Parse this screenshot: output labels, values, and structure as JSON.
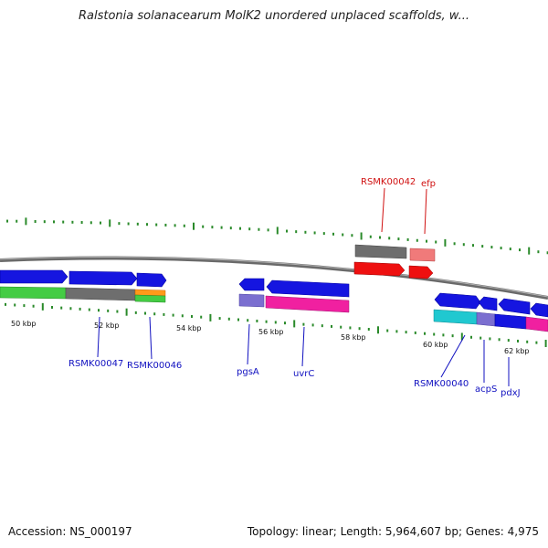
{
  "title": "Ralstonia solanacearum MolK2 unordered unplaced scaffolds, w...",
  "footer": {
    "accession": "Accession: NS_000197",
    "summary": "Topology: linear; Length: 5,964,607 bp; Genes: 4,975"
  },
  "colors": {
    "backbone": "#7a7a7a",
    "tick": "#2a8a2a",
    "gene_label_blue": "#1010c0",
    "gene_label_red": "#d01010",
    "forward_gene": "#1515e0",
    "grey_gene": "#6e6e6e",
    "red_gene": "#ee1010",
    "pink_gene": "#f07a7a",
    "green_track": "#44cc44",
    "orange_track": "#ff9a1a",
    "purple_track": "#7b6fd0",
    "magenta_track": "#f020a0",
    "cyan_track": "#20c8d0"
  },
  "ruler": {
    "labels": [
      "50 kbp",
      "52 kbp",
      "54 kbp",
      "56 kbp",
      "58 kbp",
      "60 kbp",
      "62 kbp"
    ]
  },
  "genes": {
    "top": [
      "RSMK00042",
      "efp"
    ],
    "bottom": [
      "RSMK00047",
      "RSMK00046",
      "pgsA",
      "uvrC",
      "RSMK00040",
      "acpS",
      "pdxJ"
    ]
  }
}
